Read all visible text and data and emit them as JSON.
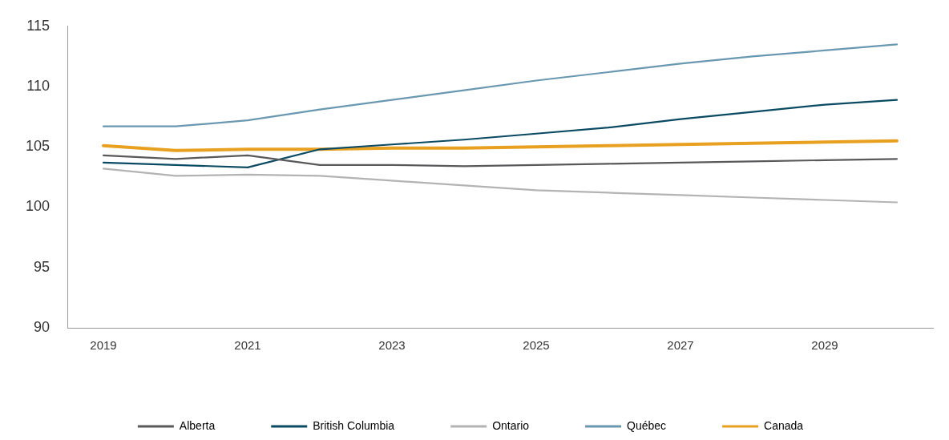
{
  "chart_data": {
    "type": "line",
    "categories": [
      "2019",
      null,
      "2021",
      null,
      "2023",
      null,
      "2025",
      null,
      "2027",
      null,
      "2029",
      null
    ],
    "ylim": [
      90,
      115
    ],
    "yticks": [
      90,
      95,
      100,
      105,
      110,
      115
    ],
    "grid": false,
    "legend": "bottom",
    "marker": "none",
    "line_style": "solid",
    "series": [
      {
        "name": "Alberta",
        "color": "#58595b",
        "values": [
          104.3,
          104.0,
          104.3,
          103.5,
          103.5,
          103.4,
          103.5,
          103.6,
          103.7,
          103.8,
          103.9,
          104.0
        ]
      },
      {
        "name": "British Columbia",
        "color": "#0b4a63",
        "values": [
          103.7,
          103.5,
          103.3,
          104.8,
          105.2,
          105.6,
          106.1,
          106.6,
          107.3,
          107.9,
          108.5,
          108.9
        ]
      },
      {
        "name": "Ontario",
        "color": "#b3b3b3",
        "values": [
          103.2,
          102.6,
          102.7,
          102.6,
          102.2,
          101.8,
          101.4,
          101.2,
          101.0,
          100.8,
          100.6,
          100.4
        ]
      },
      {
        "name": "Québec",
        "color": "#6a98b0",
        "values": [
          106.7,
          106.7,
          107.2,
          108.1,
          108.9,
          109.7,
          110.5,
          111.2,
          111.9,
          112.5,
          113.0,
          113.5
        ]
      },
      {
        "name": "Canada",
        "color": "#e8a020",
        "values": [
          105.1,
          104.7,
          104.8,
          104.8,
          104.9,
          104.9,
          105.0,
          105.1,
          105.2,
          105.3,
          105.4,
          105.5
        ]
      }
    ]
  }
}
